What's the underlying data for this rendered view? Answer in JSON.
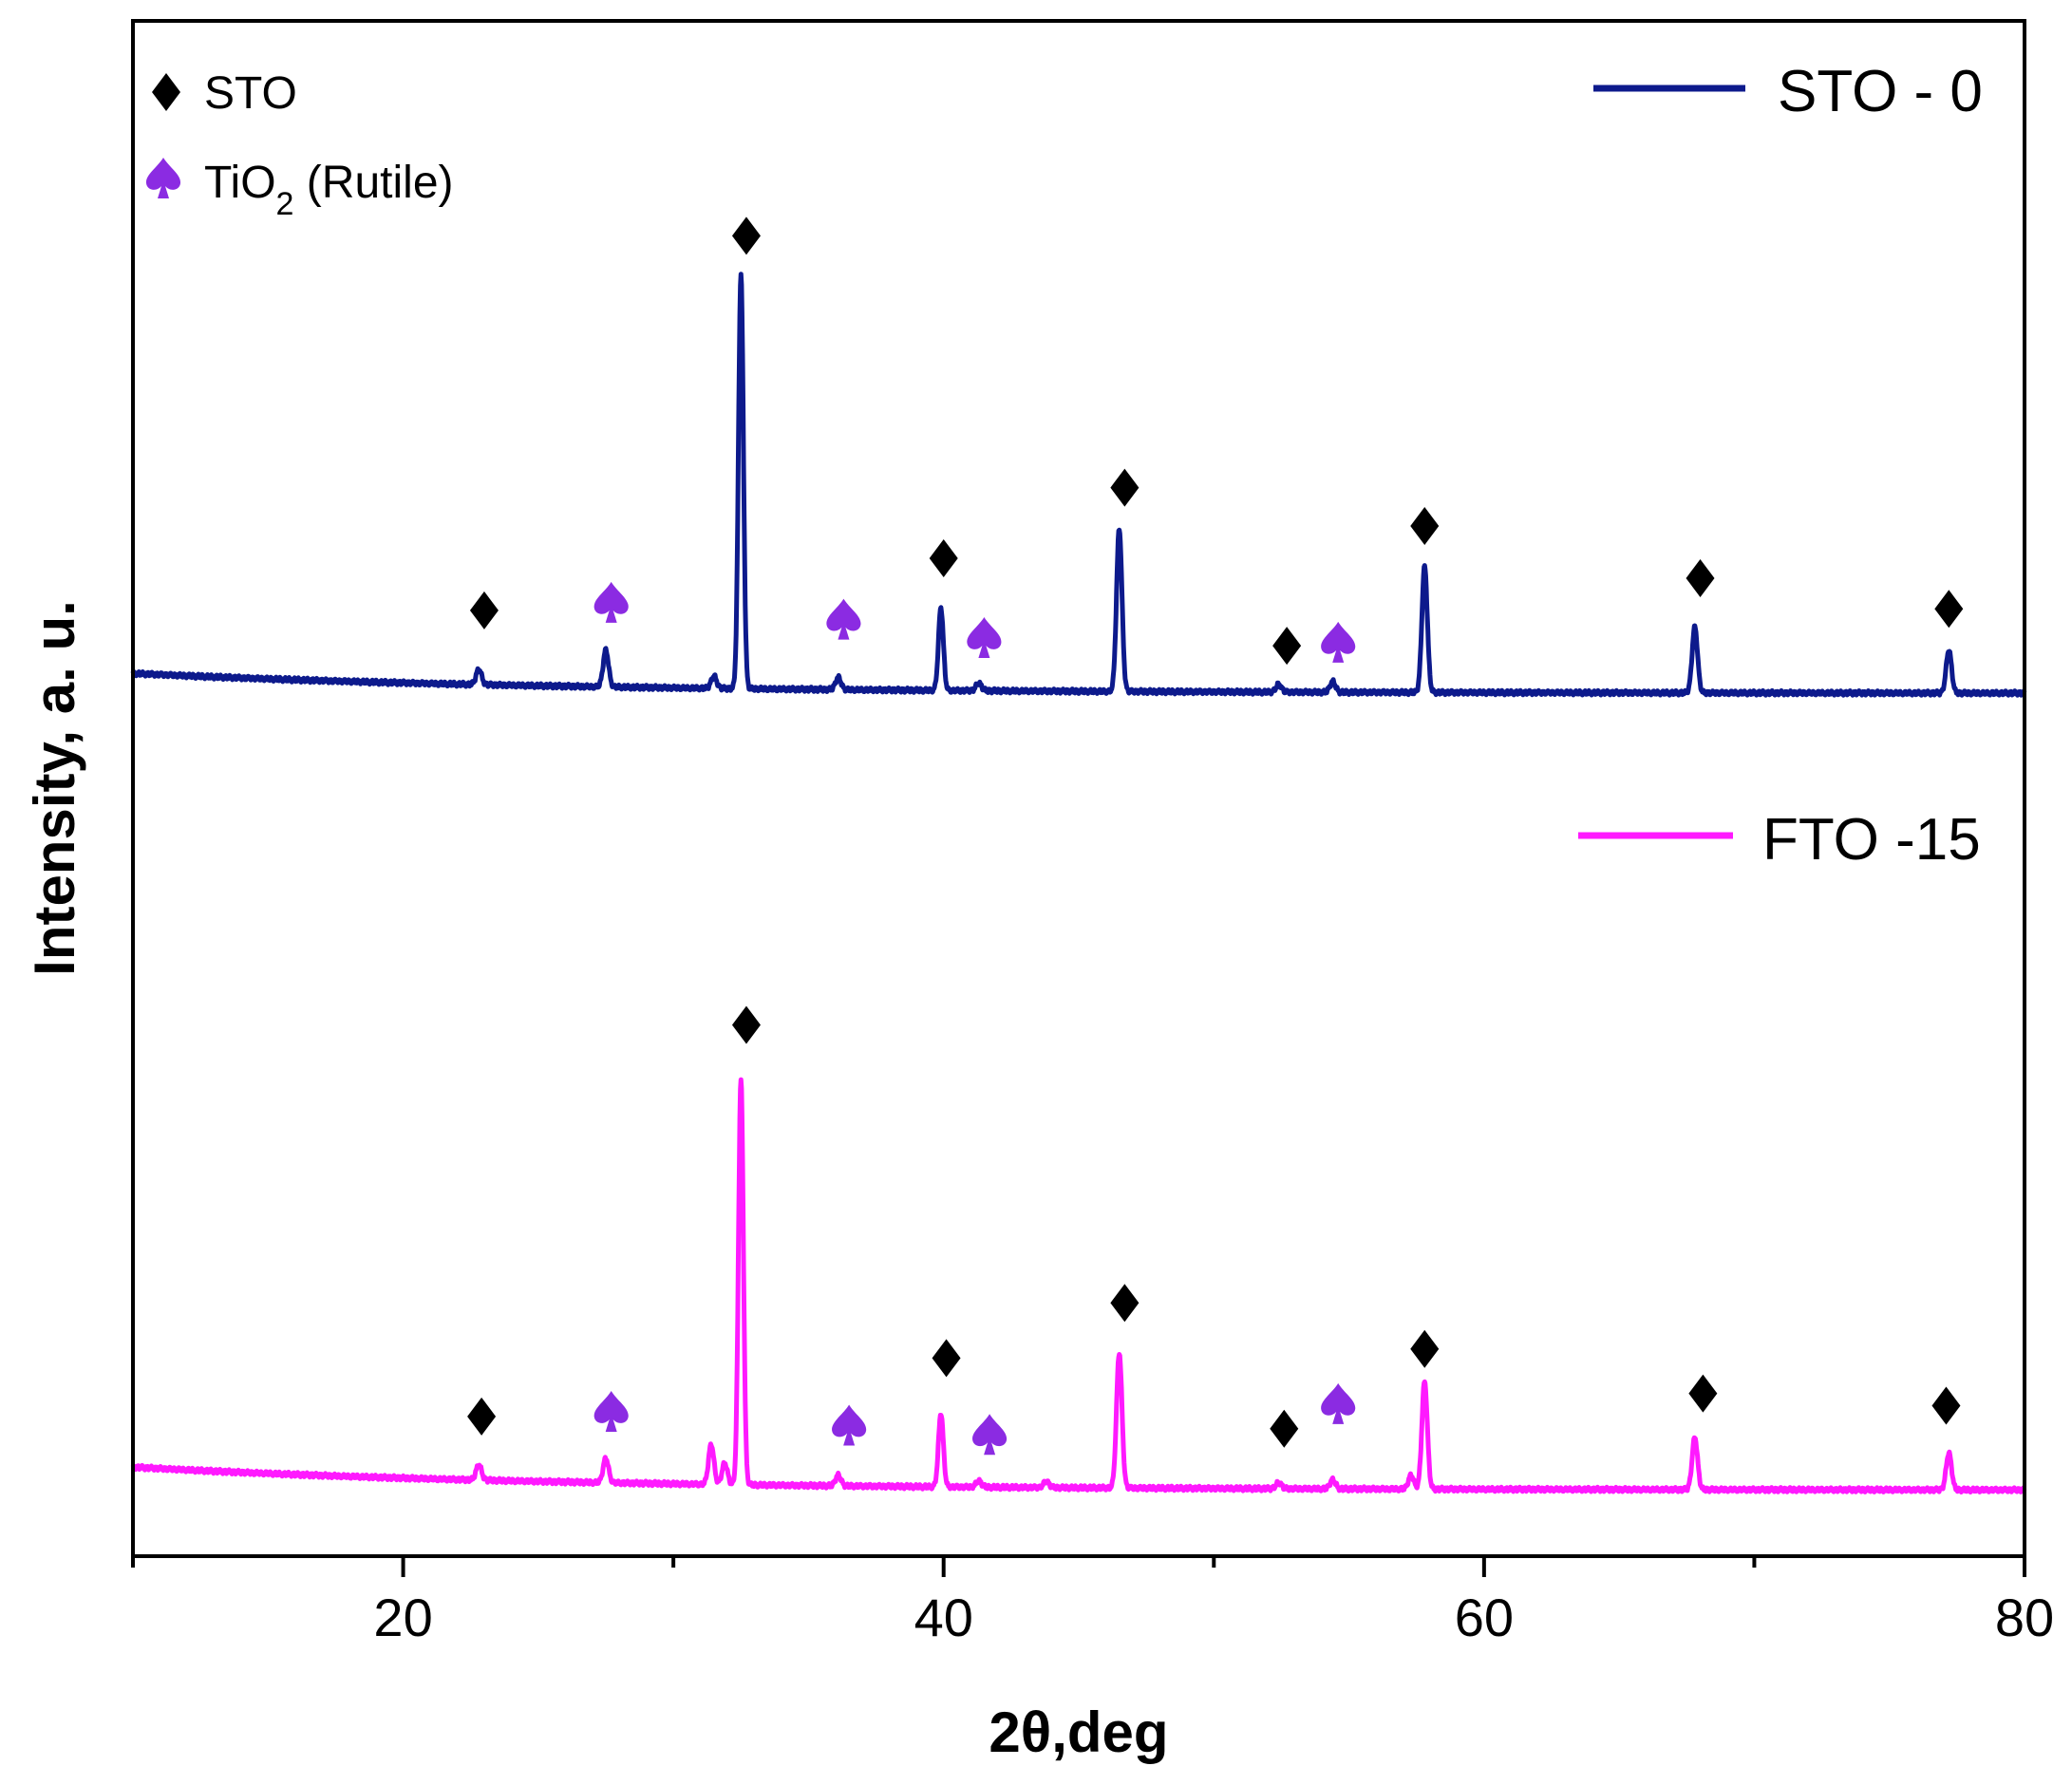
{
  "chart_data": {
    "type": "line",
    "title": "",
    "xlabel": "2θ,deg",
    "ylabel": "Intensity, a. u.",
    "xlim": [
      10,
      80
    ],
    "ylim": [
      0,
      100
    ],
    "x_ticks": [
      20,
      40,
      60,
      80
    ],
    "x_minor_ticks": [
      10,
      30,
      50,
      70
    ],
    "y_ticks_shown": false,
    "legend": [
      {
        "label": "STO - 0",
        "color": "#0d1a8c"
      },
      {
        "label": "FTO -15",
        "color": "#ff19ff"
      }
    ],
    "marker_legend": {
      "sto": {
        "label": "STO",
        "color": "#000000"
      },
      "tio2": {
        "label_main": "TiO",
        "label_sub": "2",
        "label_rest": " (Rutile)",
        "color": "#8b2be2"
      }
    },
    "series": [
      {
        "name": "STO - 0",
        "color": "#0d1a8c",
        "baseline_start": 57.5,
        "baseline_end": 56.2,
        "peaks": [
          [
            22.8,
            1.0,
            0.1
          ],
          [
            27.5,
            2.4,
            0.1
          ],
          [
            31.5,
            0.8,
            0.1
          ],
          [
            32.5,
            27.0,
            0.09
          ],
          [
            36.1,
            0.8,
            0.1
          ],
          [
            39.9,
            5.4,
            0.09
          ],
          [
            41.3,
            0.5,
            0.1
          ],
          [
            46.5,
            10.6,
            0.1
          ],
          [
            52.4,
            0.5,
            0.1
          ],
          [
            54.4,
            0.7,
            0.1
          ],
          [
            57.8,
            8.2,
            0.1
          ],
          [
            67.8,
            4.3,
            0.1
          ],
          [
            77.2,
            2.8,
            0.1
          ]
        ],
        "markers": [
          {
            "x": 23.0,
            "y": 61.6,
            "type": "sto"
          },
          {
            "x": 27.7,
            "y": 62.1,
            "type": "tio2"
          },
          {
            "x": 32.7,
            "y": 86.0,
            "type": "sto"
          },
          {
            "x": 36.3,
            "y": 61.0,
            "type": "tio2"
          },
          {
            "x": 40.0,
            "y": 65.0,
            "type": "sto"
          },
          {
            "x": 41.5,
            "y": 59.8,
            "type": "tio2"
          },
          {
            "x": 46.7,
            "y": 69.6,
            "type": "sto"
          },
          {
            "x": 52.7,
            "y": 59.3,
            "type": "sto"
          },
          {
            "x": 54.6,
            "y": 59.5,
            "type": "tio2"
          },
          {
            "x": 57.8,
            "y": 67.1,
            "type": "sto"
          },
          {
            "x": 68.0,
            "y": 63.7,
            "type": "sto"
          },
          {
            "x": 77.2,
            "y": 61.7,
            "type": "sto"
          }
        ]
      },
      {
        "name": "FTO -15",
        "color": "#ff19ff",
        "baseline_start": 5.8,
        "baseline_end": 4.3,
        "peaks": [
          [
            22.8,
            1.0,
            0.1
          ],
          [
            27.5,
            1.6,
            0.1
          ],
          [
            31.4,
            2.6,
            0.1
          ],
          [
            31.9,
            1.4,
            0.1
          ],
          [
            32.5,
            26.4,
            0.09
          ],
          [
            36.1,
            0.7,
            0.1
          ],
          [
            39.9,
            4.8,
            0.09
          ],
          [
            41.3,
            0.4,
            0.1
          ],
          [
            43.8,
            0.4,
            0.1
          ],
          [
            46.5,
            8.8,
            0.1
          ],
          [
            52.4,
            0.4,
            0.1
          ],
          [
            54.4,
            0.6,
            0.1
          ],
          [
            57.3,
            0.9,
            0.1
          ],
          [
            57.8,
            7.0,
            0.1
          ],
          [
            67.8,
            3.4,
            0.1
          ],
          [
            77.2,
            2.4,
            0.1
          ]
        ],
        "markers": [
          {
            "x": 22.9,
            "y": 9.1,
            "type": "sto"
          },
          {
            "x": 27.7,
            "y": 9.4,
            "type": "tio2"
          },
          {
            "x": 32.7,
            "y": 34.6,
            "type": "sto"
          },
          {
            "x": 36.5,
            "y": 8.5,
            "type": "tio2"
          },
          {
            "x": 40.1,
            "y": 12.9,
            "type": "sto"
          },
          {
            "x": 41.7,
            "y": 7.9,
            "type": "tio2"
          },
          {
            "x": 46.7,
            "y": 16.5,
            "type": "sto"
          },
          {
            "x": 52.6,
            "y": 8.3,
            "type": "sto"
          },
          {
            "x": 54.6,
            "y": 9.9,
            "type": "tio2"
          },
          {
            "x": 57.8,
            "y": 13.5,
            "type": "sto"
          },
          {
            "x": 68.1,
            "y": 10.6,
            "type": "sto"
          },
          {
            "x": 77.1,
            "y": 9.8,
            "type": "sto"
          }
        ]
      }
    ]
  }
}
